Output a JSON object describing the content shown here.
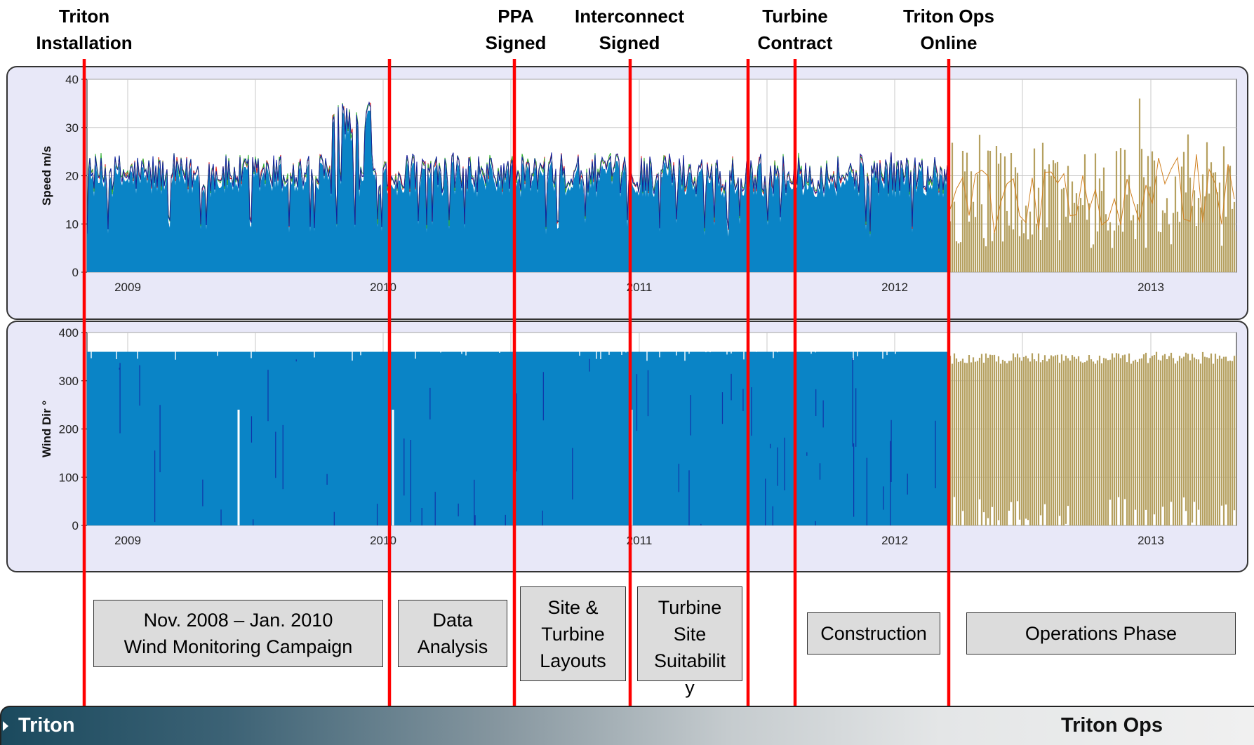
{
  "colors": {
    "monitoring_series": [
      "#e02020",
      "#30b030",
      "#1020a0",
      "#0a84c6"
    ],
    "operations_series": [
      "#d08020",
      "#b5a060"
    ],
    "milestone_line": "#ff0000",
    "panel_fill": "#e8e8f8",
    "phase_box_fill": "#dcdcdc"
  },
  "milestones": [
    {
      "label": "Triton\nInstallation",
      "date": "2008-11"
    },
    {
      "label": "",
      "date": "2010-01"
    },
    {
      "label": "PPA\nSigned",
      "date": "2010-06"
    },
    {
      "label": "Interconnect\nSigned",
      "date": "2010-11"
    },
    {
      "label": "",
      "date": "2011-05"
    },
    {
      "label": "Turbine\nContract",
      "date": "2011-07"
    },
    {
      "label": "Triton Ops\nOnline",
      "date": "2012-03"
    }
  ],
  "phases": [
    {
      "label": "Nov. 2008 – Jan. 2010\nWind Monitoring Campaign"
    },
    {
      "label": "Data\nAnalysis"
    },
    {
      "label": "Site &\nTurbine\nLayouts"
    },
    {
      "label": "Turbine\nSite\nSuitabilit\ny"
    },
    {
      "label": "Construction"
    },
    {
      "label": "Operations Phase"
    }
  ],
  "footer": {
    "left": "Triton",
    "right": "Triton Ops"
  },
  "chart_data": [
    {
      "type": "area",
      "ylabel": "Speed m/s",
      "ylim": [
        0,
        40
      ],
      "yticks": [
        0,
        10,
        20,
        30,
        40
      ],
      "x_ticks": [
        "2009",
        "2010",
        "2011",
        "2012",
        "2013"
      ],
      "xlim": [
        "2008-10-15",
        "2013-05-15"
      ],
      "grid": true,
      "series": [
        {
          "period": "2008-11 to 2012-03",
          "typical_max": 22,
          "peak": 33.5
        },
        {
          "period": "2012-03 to 2013-05",
          "typical_max": 22,
          "peak": 36
        }
      ]
    },
    {
      "type": "area",
      "ylabel": "Wind Dir °",
      "ylim": [
        0,
        400
      ],
      "yticks": [
        0,
        100,
        200,
        300,
        400
      ],
      "x_ticks": [
        "2009",
        "2010",
        "2011",
        "2012",
        "2013"
      ],
      "xlim": [
        "2008-10-15",
        "2013-05-15"
      ],
      "grid": true,
      "series": [
        {
          "period": "2008-11 to 2012-03",
          "typical_max": 360
        },
        {
          "period": "2012-03 to 2013-05",
          "typical_max": 360
        }
      ]
    }
  ]
}
